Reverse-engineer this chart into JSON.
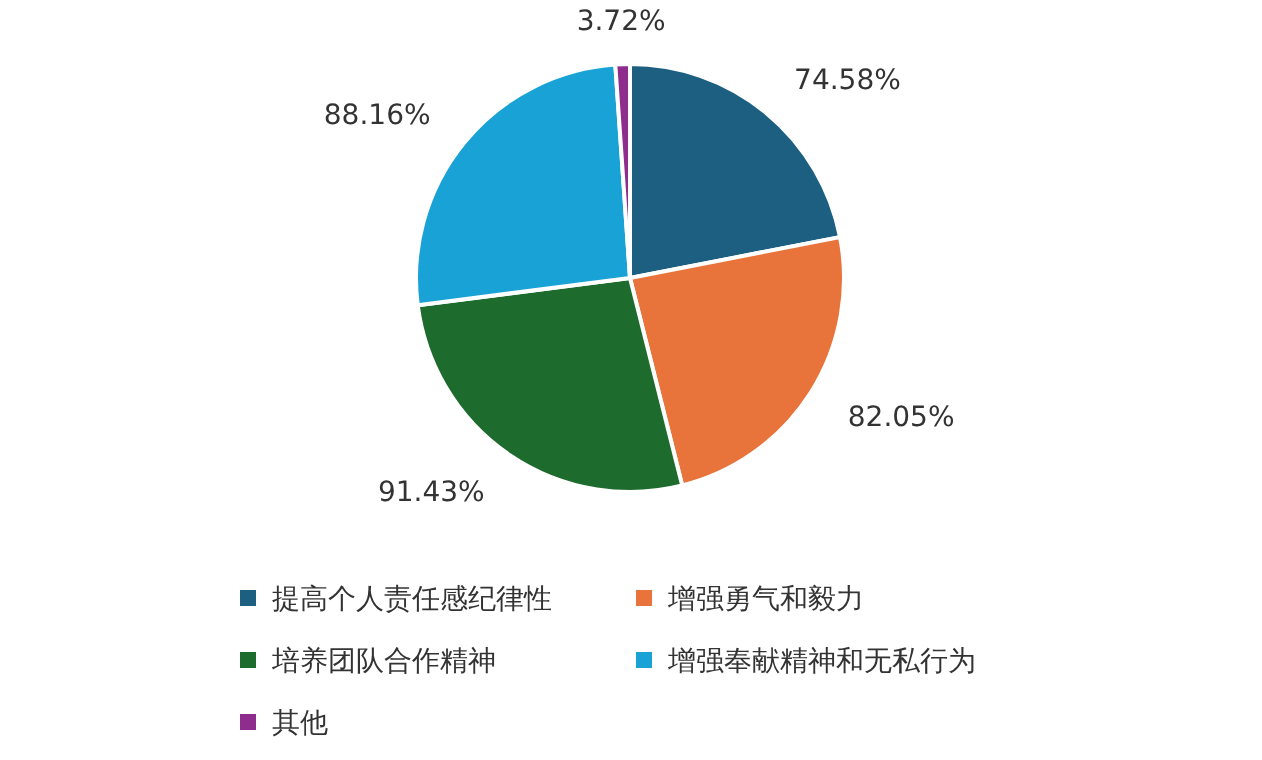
{
  "chart_data": {
    "type": "pie",
    "categories": [
      "提高个人责任感纪律性",
      "增强勇气和毅力",
      "培养团队合作精神",
      "增强奉献精神和无私行为",
      "其他"
    ],
    "values": [
      74.58,
      82.05,
      91.43,
      88.16,
      3.72
    ],
    "value_labels": [
      "74.58%",
      "82.05%",
      "91.43%",
      "88.16%",
      "3.72%"
    ],
    "colors": [
      "#1d5f80",
      "#e8743b",
      "#1e6b2e",
      "#18a2d6",
      "#8e2d8e"
    ],
    "legend": "bottom"
  }
}
